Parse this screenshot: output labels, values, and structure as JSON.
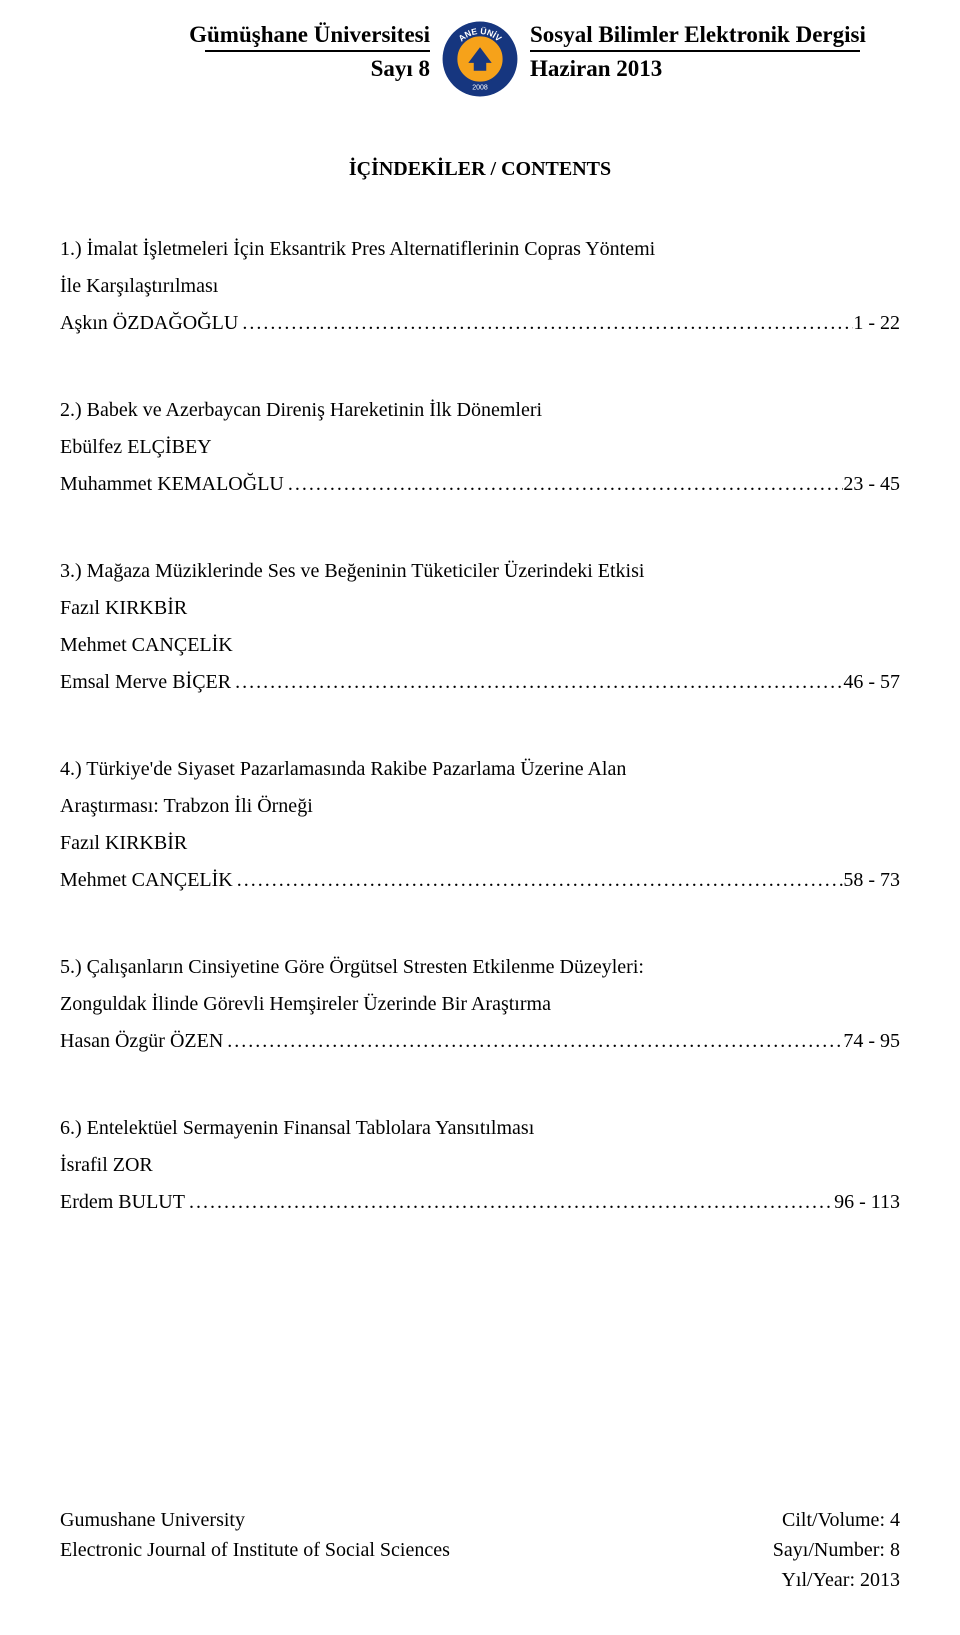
{
  "header": {
    "university": "Gümüşhane Üniversitesi",
    "issue": "Sayı 8",
    "journal": "Sosyal Bilimler Elektronik Dergisi",
    "date": "Haziran 2013"
  },
  "logo": {
    "top_text": "ANE ÜNİV",
    "year": "2008",
    "outer_ring_color": "#16367f",
    "inner_disc_color": "#f6a21a",
    "inner_stroke_color": "#16367f",
    "text_color": "#ffffff"
  },
  "contents_title": "İÇİNDEKİLER / CONTENTS",
  "entries": [
    {
      "num": "1.)",
      "title_line1": "1.) İmalat İşletmeleri İçin Eksantrik Pres Alternatiflerinin Copras Yöntemi",
      "title_line2": "İle Karşılaştırılması",
      "authors": [
        "Aşkın ÖZDAĞOĞLU"
      ],
      "pages": "1 - 22"
    },
    {
      "num": "2.)",
      "title_line1": "2.) Babek ve Azerbaycan Direniş Hareketinin İlk Dönemleri",
      "authors": [
        "Ebülfez ELÇİBEY",
        "Muhammet KEMALOĞLU"
      ],
      "pages": "23 - 45"
    },
    {
      "num": "3.)",
      "title_line1": "3.) Mağaza Müziklerinde Ses ve Beğeninin Tüketiciler Üzerindeki Etkisi",
      "authors": [
        "Fazıl KIRKBİR",
        "Mehmet CANÇELİK",
        "Emsal Merve BİÇER"
      ],
      "pages": "46 - 57"
    },
    {
      "num": "4.)",
      "title_line1": "4.) Türkiye'de Siyaset Pazarlamasında Rakibe Pazarlama Üzerine Alan",
      "title_line2": "Araştırması: Trabzon İli Örneği",
      "authors": [
        "Fazıl KIRKBİR",
        "Mehmet CANÇELİK"
      ],
      "pages": "58 - 73"
    },
    {
      "num": "5.)",
      "title_line1": "5.) Çalışanların Cinsiyetine Göre Örgütsel Stresten Etkilenme Düzeyleri:",
      "title_line2": "Zonguldak İlinde Görevli Hemşireler Üzerinde Bir Araştırma",
      "authors": [
        "Hasan Özgür ÖZEN"
      ],
      "pages": "74 - 95"
    },
    {
      "num": "6.)",
      "title_line1": "6.) Entelektüel Sermayenin Finansal Tablolara Yansıtılması",
      "authors": [
        "İsrafil ZOR",
        "Erdem BULUT"
      ],
      "pages": "96 - 113"
    }
  ],
  "footer": {
    "left_line1": "Gumushane University",
    "left_line2": "Electronic Journal of Institute of Social Sciences",
    "right_line1": "Cilt/Volume: 4",
    "right_line2": "Sayı/Number: 8",
    "right_line3": "Yıl/Year: 2013"
  },
  "dot_filler": "........................................................................................................................................................"
}
